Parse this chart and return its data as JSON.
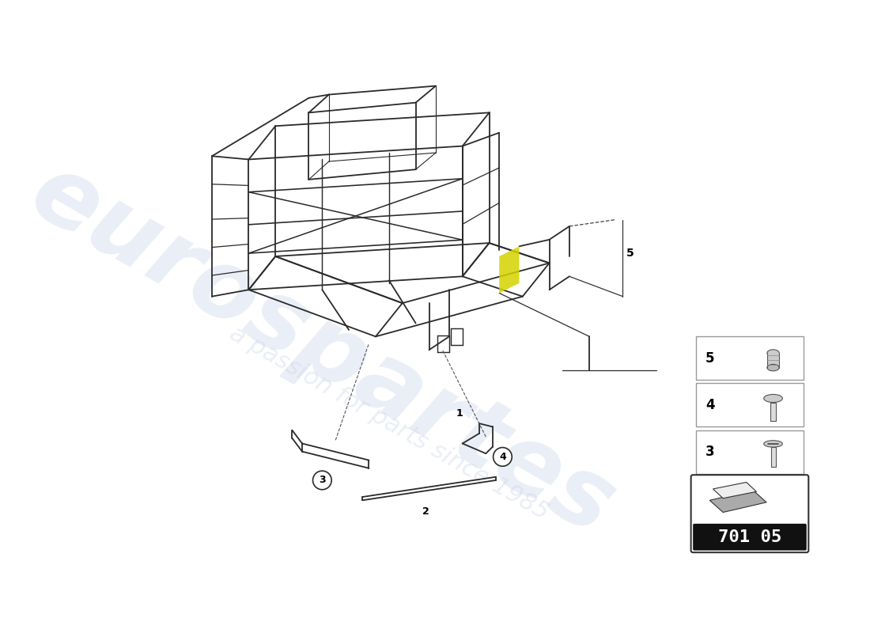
{
  "bg_color": "#ffffff",
  "watermark_text1": "eurospartes",
  "watermark_text2": "a passion for parts since 1985",
  "badge_text": "701 05",
  "line_color": "#2a2a2a",
  "light_line_color": "#555555",
  "legend_border_color": "#999999",
  "badge_bg": "#111111",
  "badge_text_color": "#ffffff",
  "yellow_color": "#d4d400",
  "watermark_color": "#c8d4e8",
  "watermark_alpha": 0.38
}
